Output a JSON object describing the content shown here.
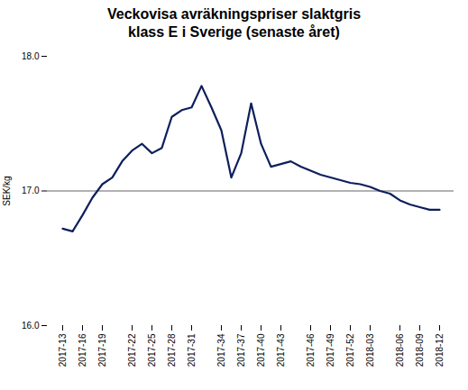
{
  "chart_data": {
    "type": "line",
    "title": "Veckovisa avräkningspriser slaktgris\nklass E i Sverige (senaste året)",
    "ylabel": "SEK/kg",
    "categories": [
      "2017-13",
      null,
      "2017-16",
      null,
      "2017-19",
      null,
      null,
      "2017-22",
      null,
      "2017-25",
      null,
      "2017-28",
      null,
      "2017-31",
      null,
      null,
      "2017-34",
      null,
      "2017-37",
      null,
      "2017-40",
      null,
      "2017-43",
      null,
      null,
      "2017-46",
      null,
      "2017-49",
      null,
      "2017-52",
      null,
      "2018-03",
      null,
      null,
      "2018-06",
      null,
      "2018-09",
      null,
      "2018-12"
    ],
    "values": [
      16.72,
      16.7,
      16.82,
      16.95,
      17.05,
      17.1,
      17.22,
      17.3,
      17.35,
      17.28,
      17.32,
      17.55,
      17.6,
      17.62,
      17.78,
      17.62,
      17.45,
      17.1,
      17.28,
      17.65,
      17.35,
      17.18,
      17.2,
      17.22,
      17.18,
      17.15,
      17.12,
      17.1,
      17.08,
      17.06,
      17.05,
      17.03,
      17.0,
      16.98,
      16.93,
      16.9,
      16.88,
      16.86,
      16.86
    ],
    "color": "#0d1f5c",
    "ylim": [
      16,
      18
    ],
    "yticks": [
      16,
      17,
      18
    ],
    "hline": 17.0
  }
}
